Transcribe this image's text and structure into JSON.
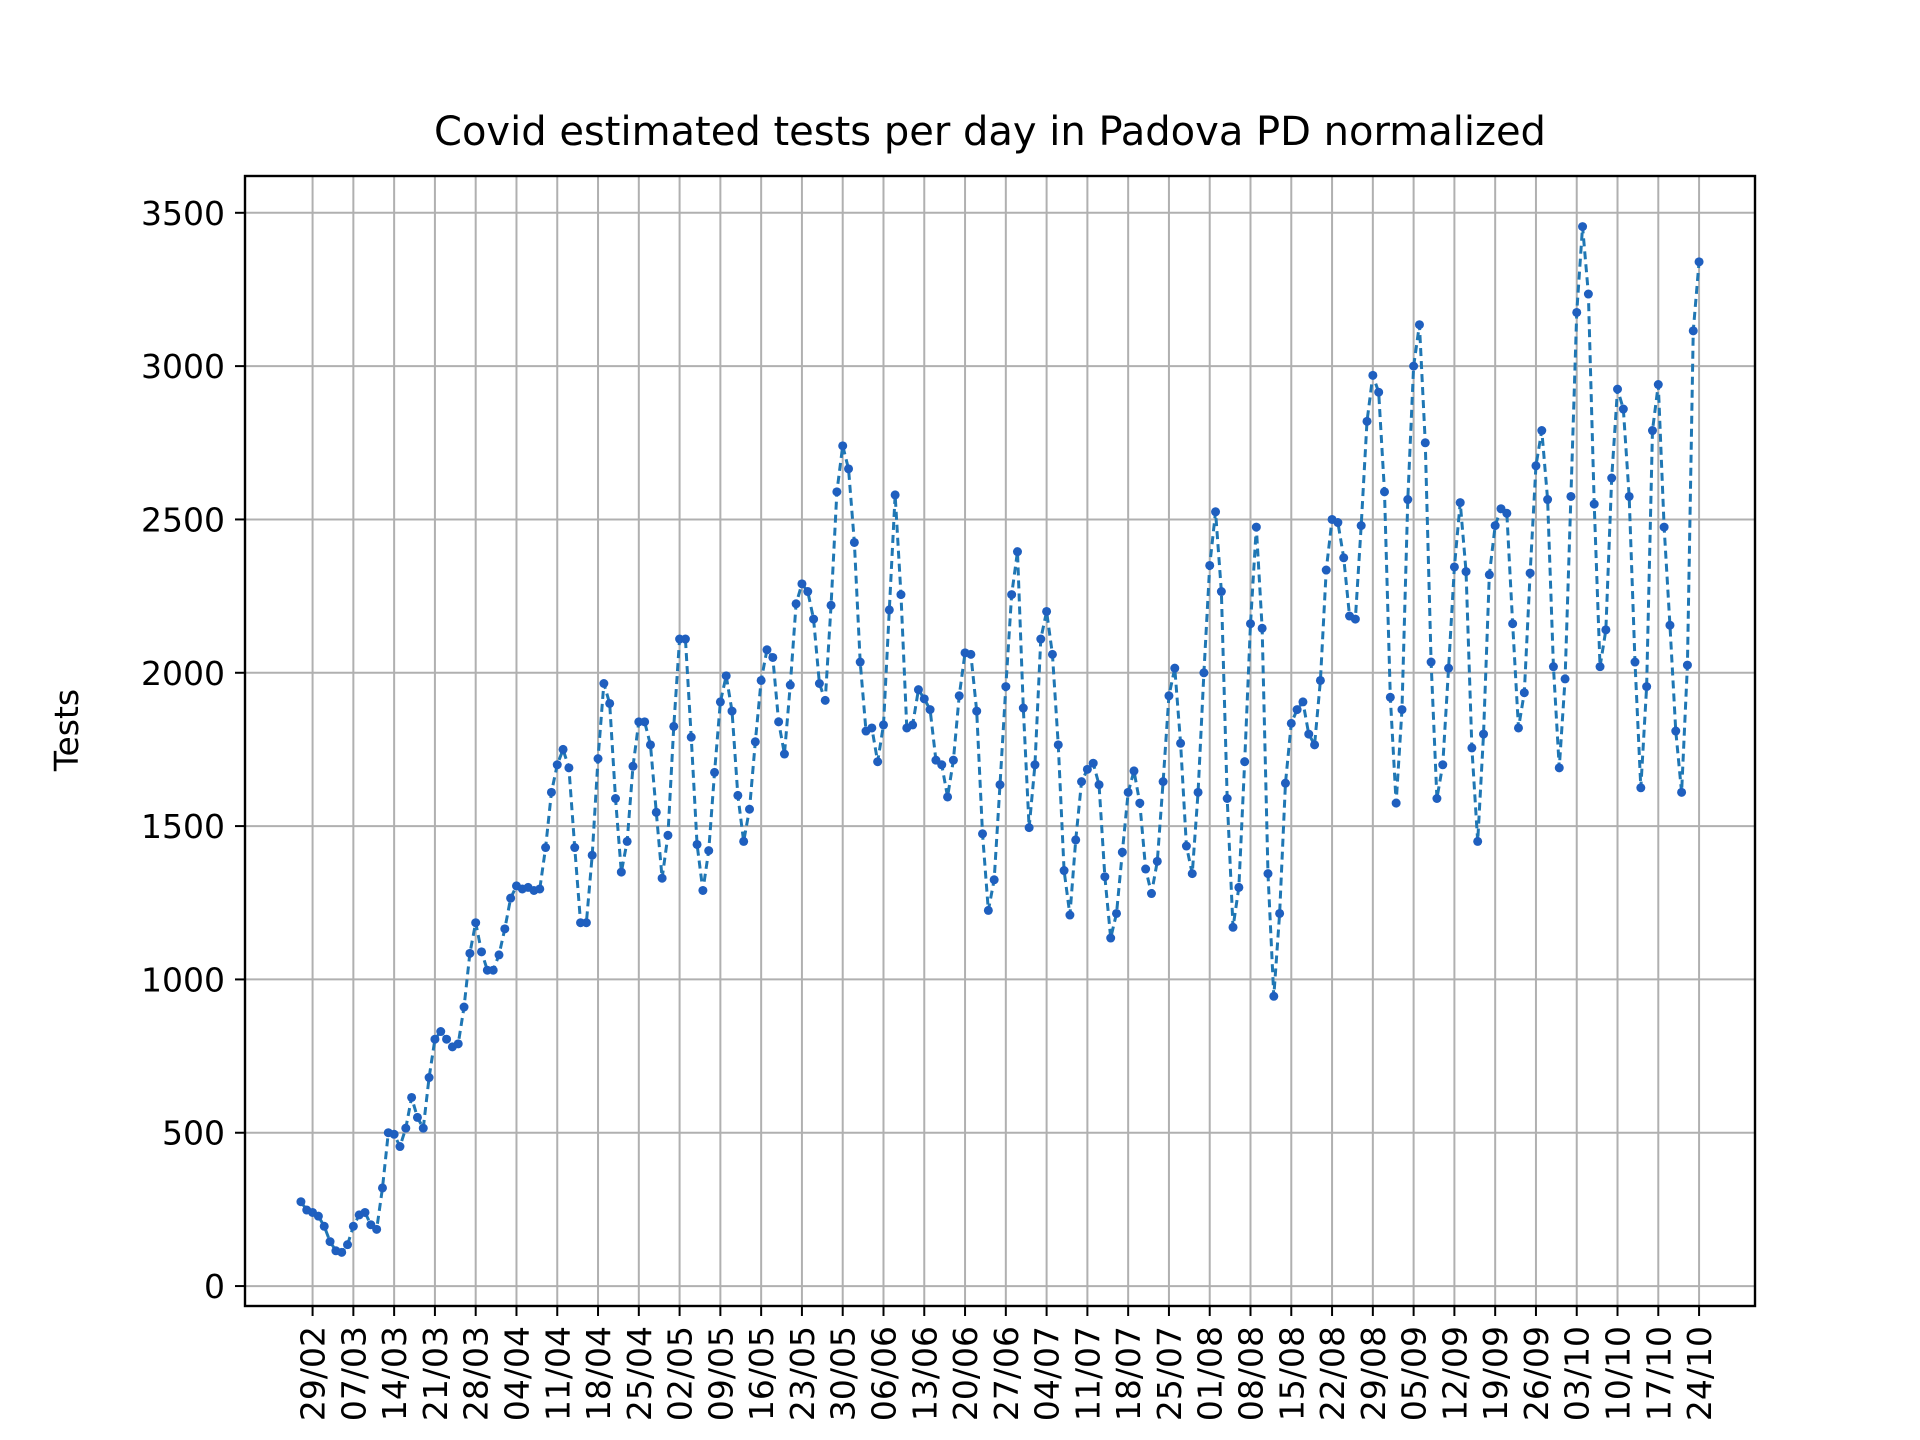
{
  "chart_data": {
    "type": "line",
    "title": "Covid estimated tests per day in Padova PD normalized",
    "xlabel": "",
    "ylabel": "Tests",
    "ylim": [
      -65,
      3620
    ],
    "yticks": [
      0,
      500,
      1000,
      1500,
      2000,
      2500,
      3000,
      3500
    ],
    "grid": true,
    "line_style": "dashed",
    "marker": "point",
    "colors": {
      "line": "#1f77b4",
      "marker": "#1f5fbf",
      "grid": "#b0b0b0"
    },
    "x_start": "27/02",
    "x_tick_labels": [
      "29/02",
      "07/03",
      "14/03",
      "21/03",
      "28/03",
      "04/04",
      "11/04",
      "18/04",
      "25/04",
      "02/05",
      "09/05",
      "16/05",
      "23/05",
      "30/05",
      "06/06",
      "13/06",
      "20/06",
      "27/06",
      "04/07",
      "11/07",
      "18/07",
      "25/07",
      "01/08",
      "08/08",
      "15/08",
      "22/08",
      "29/08",
      "05/09",
      "12/09",
      "19/09",
      "26/09",
      "03/10",
      "10/10",
      "17/10",
      "24/10"
    ],
    "series": [
      {
        "name": "",
        "values": [
          275,
          248,
          240,
          228,
          195,
          145,
          115,
          110,
          135,
          195,
          232,
          240,
          200,
          185,
          320,
          500,
          495,
          455,
          515,
          615,
          550,
          515,
          680,
          805,
          830,
          805,
          780,
          790,
          910,
          1085,
          1185,
          1090,
          1030,
          1030,
          1080,
          1165,
          1265,
          1305,
          1295,
          1300,
          1290,
          1295,
          1430,
          1610,
          1700,
          1750,
          1690,
          1430,
          1185,
          1185,
          1405,
          1720,
          1965,
          1900,
          1590,
          1350,
          1450,
          1695,
          1840,
          1840,
          1765,
          1545,
          1330,
          1470,
          1825,
          2110,
          2110,
          1790,
          1440,
          1290,
          1420,
          1675,
          1905,
          1990,
          1875,
          1600,
          1450,
          1555,
          1775,
          1975,
          2075,
          2050,
          1840,
          1735,
          1960,
          2225,
          2290,
          2265,
          2175,
          1965,
          1910,
          2220,
          2590,
          2740,
          2665,
          2425,
          2035,
          1810,
          1820,
          1710,
          1830,
          2205,
          2580,
          2255,
          1820,
          1830,
          1945,
          1915,
          1880,
          1715,
          1700,
          1595,
          1715,
          1925,
          2065,
          2060,
          1875,
          1475,
          1225,
          1325,
          1635,
          1955,
          2255,
          2395,
          1885,
          1495,
          1700,
          2110,
          2200,
          2060,
          1765,
          1355,
          1210,
          1455,
          1645,
          1685,
          1705,
          1635,
          1335,
          1135,
          1215,
          1415,
          1610,
          1680,
          1575,
          1360,
          1280,
          1385,
          1645,
          1925,
          2015,
          1770,
          1435,
          1345,
          1610,
          2000,
          2350,
          2525,
          2265,
          1590,
          1170,
          1300,
          1710,
          2160,
          2475,
          2145,
          1345,
          945,
          1215,
          1640,
          1835,
          1880,
          1905,
          1800,
          1765,
          1975,
          2335,
          2500,
          2490,
          2375,
          2185,
          2175,
          2480,
          2820,
          2970,
          2915,
          2590,
          1920,
          1575,
          1880,
          2565,
          3000,
          3135,
          2750,
          2035,
          1590,
          1700,
          2015,
          2345,
          2555,
          2330,
          1755,
          1450,
          1800,
          2320,
          2480,
          2535,
          2520,
          2160,
          1820,
          1935,
          2325,
          2675,
          2790,
          2565,
          2020,
          1690,
          1980,
          2575,
          3175,
          3455,
          3235,
          2550,
          2020,
          2140,
          2635,
          2925,
          2860,
          2575,
          2035,
          1625,
          1955,
          2790,
          2940,
          2475,
          2155,
          1810,
          1610,
          2025,
          3115,
          3340
        ]
      }
    ]
  }
}
